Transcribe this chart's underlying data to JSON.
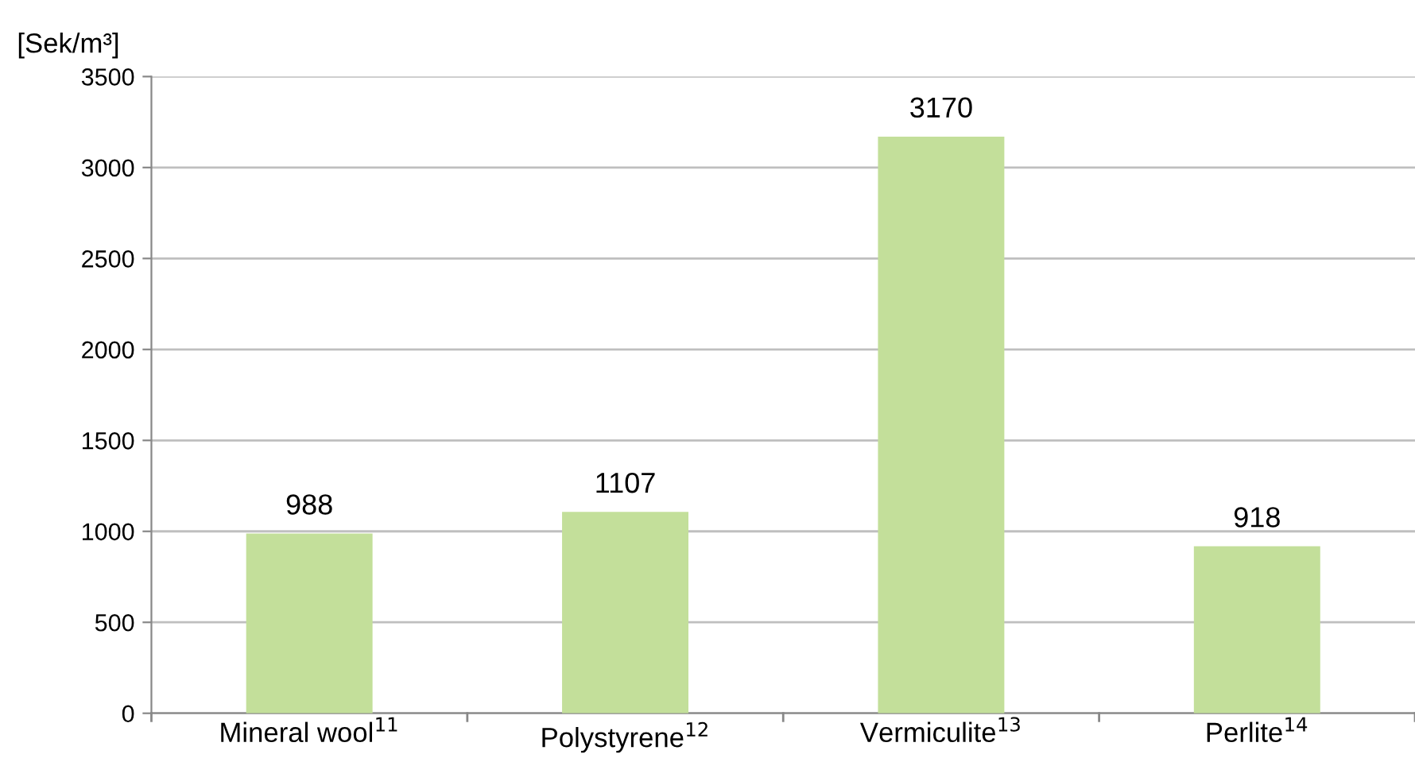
{
  "chart_data": {
    "type": "bar",
    "ylabel": "[Sek/m³]",
    "categories": [
      "Mineral wool$^{11}$",
      "Polystyrene$^{12}$",
      "Vermiculite$^{13}$",
      "Perlite$^{14}$"
    ],
    "values": [
      988,
      1107,
      3170,
      918
    ],
    "color": "#c3df9a",
    "ylim": [
      0,
      3500
    ],
    "yticks": [
      0,
      500,
      1000,
      1500,
      2000,
      2500,
      3000,
      3500
    ],
    "grid": "y",
    "data_labels": true
  }
}
